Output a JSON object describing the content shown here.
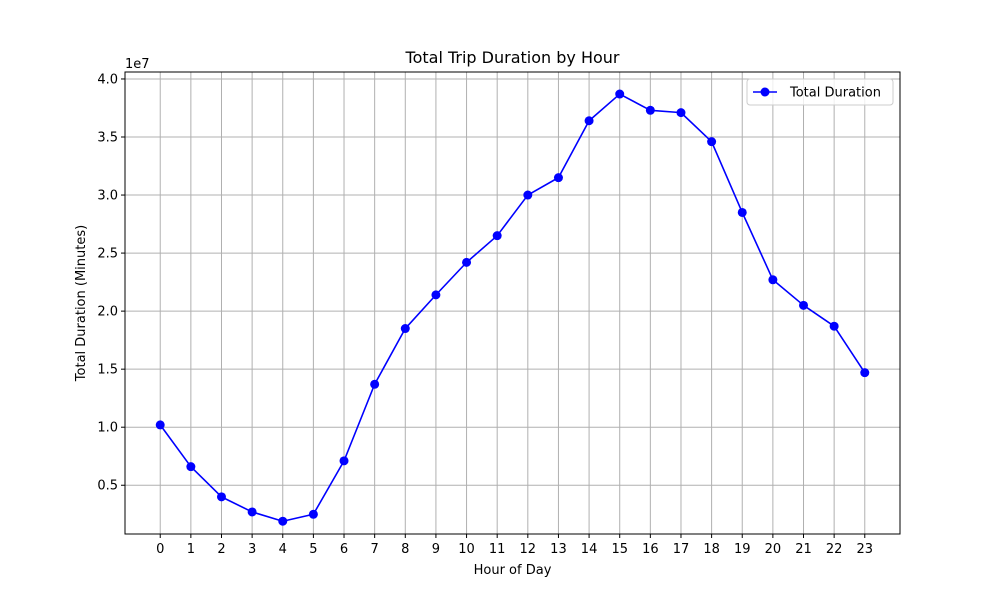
{
  "chart_data": {
    "type": "line",
    "title": "Total Trip Duration by Hour",
    "xlabel": "Hour of Day",
    "ylabel": "Total Duration (Minutes)",
    "y_offset_label": "1e7",
    "x": [
      0,
      1,
      2,
      3,
      4,
      5,
      6,
      7,
      8,
      9,
      10,
      11,
      12,
      13,
      14,
      15,
      16,
      17,
      18,
      19,
      20,
      21,
      22,
      23
    ],
    "x_tick_labels": [
      "0",
      "1",
      "2",
      "3",
      "4",
      "5",
      "6",
      "7",
      "8",
      "9",
      "10",
      "11",
      "12",
      "13",
      "14",
      "15",
      "16",
      "17",
      "18",
      "19",
      "20",
      "21",
      "22",
      "23"
    ],
    "y_ticks": [
      0.5,
      1.0,
      1.5,
      2.0,
      2.5,
      3.0,
      3.5,
      4.0
    ],
    "y_tick_labels": [
      "0.5",
      "1.0",
      "1.5",
      "2.0",
      "2.5",
      "3.0",
      "3.5",
      "4.0"
    ],
    "xlim": [
      -1.15,
      24.15
    ],
    "ylim": [
      0.08,
      4.06
    ],
    "y_scale_multiplier": 10000000,
    "grid": true,
    "legend_position": "top-right",
    "series": [
      {
        "name": "Total Duration",
        "color": "#0000ff",
        "marker": "circle",
        "values": [
          1.02,
          0.66,
          0.4,
          0.27,
          0.19,
          0.25,
          0.71,
          1.37,
          1.85,
          2.14,
          2.42,
          2.65,
          3.0,
          3.15,
          3.64,
          3.87,
          3.73,
          3.71,
          3.46,
          2.85,
          2.27,
          2.05,
          1.87,
          1.47
        ]
      }
    ]
  }
}
